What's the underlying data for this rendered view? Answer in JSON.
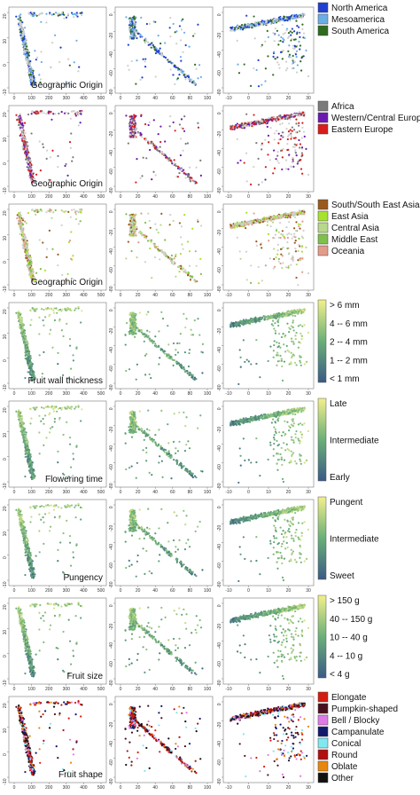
{
  "chart_data": [
    {
      "type": "scatter",
      "row_label": "Geographic Origin",
      "legend_kind": "categorical",
      "legend": [
        {
          "label": "North America",
          "color": "#1f3fd0"
        },
        {
          "label": "Mesoamerica",
          "color": "#6aaee8"
        },
        {
          "label": "South America",
          "color": "#2f6b1f"
        }
      ],
      "background_color": "#cfcfcf"
    },
    {
      "type": "scatter",
      "row_label": "Geographic Origin",
      "legend_kind": "categorical",
      "legend": [
        {
          "label": "Africa",
          "color": "#7a7a7a"
        },
        {
          "label": "Western/Central Europe",
          "color": "#6a1ab0"
        },
        {
          "label": "Eastern Europe",
          "color": "#d81c1c"
        }
      ],
      "background_color": "#d0d0d0"
    },
    {
      "type": "scatter",
      "row_label": "Geographic Origin",
      "legend_kind": "categorical",
      "legend": [
        {
          "label": "South/South East Asia",
          "color": "#9a5a1e"
        },
        {
          "label": "East Asia",
          "color": "#a7e22e"
        },
        {
          "label": "Central Asia",
          "color": "#b8d88a"
        },
        {
          "label": "Middle East",
          "color": "#7fc04a"
        },
        {
          "label": "Oceania",
          "color": "#e39b8a"
        }
      ],
      "background_color": "#d0d0d0"
    },
    {
      "type": "scatter",
      "row_label": "Fruit wall thickness",
      "legend_kind": "gradient",
      "legend": [
        "> 6 mm",
        "4 -- 6 mm",
        "2 -- 4 mm",
        "1 -- 2 mm",
        "< 1 mm"
      ]
    },
    {
      "type": "scatter",
      "row_label": "Flowering time",
      "legend_kind": "gradient",
      "legend": [
        "Late",
        "Intermediate",
        "Early"
      ]
    },
    {
      "type": "scatter",
      "row_label": "Pungency",
      "legend_kind": "gradient",
      "legend": [
        "Pungent",
        "Intermediate",
        "Sweet"
      ]
    },
    {
      "type": "scatter",
      "row_label": "Fruit size",
      "legend_kind": "gradient",
      "legend": [
        "> 150 g",
        "40 -- 150 g",
        "10 -- 40 g",
        "4 -- 10 g",
        "< 4 g"
      ]
    },
    {
      "type": "scatter",
      "row_label": "Fruit shape",
      "legend_kind": "categorical",
      "legend": [
        {
          "label": "Elongate",
          "color": "#d41d0f"
        },
        {
          "label": "Pumpkin-shaped",
          "color": "#4a0f1e"
        },
        {
          "label": "Bell / Blocky",
          "color": "#e07ae8"
        },
        {
          "label": "Campanulate",
          "color": "#121a6e"
        },
        {
          "label": "Conical",
          "color": "#7fe8f0"
        },
        {
          "label": "Round",
          "color": "#b01010"
        },
        {
          "label": "Oblate",
          "color": "#e8870e"
        },
        {
          "label": "Other",
          "color": "#111111"
        }
      ]
    }
  ],
  "gradient": {
    "low": "#3a5a86",
    "mid": "#6ab078",
    "high": "#f2f08a"
  },
  "axes": {
    "col1": {
      "xticks": [
        "0",
        "100",
        "200",
        "300",
        "400",
        "500"
      ],
      "yticks": [
        "20",
        "10",
        "0",
        "-10"
      ]
    },
    "col2": {
      "xticks": [
        "0",
        "20",
        "40",
        "60",
        "80",
        "100"
      ],
      "yticks": [
        "0",
        "-20",
        "-40",
        "-60",
        "-80"
      ]
    },
    "col3": {
      "xticks": [
        "-10",
        "0",
        "10",
        "20",
        "30"
      ],
      "yticks": [
        "0",
        "-20",
        "-40",
        "-60",
        "-80"
      ]
    }
  }
}
